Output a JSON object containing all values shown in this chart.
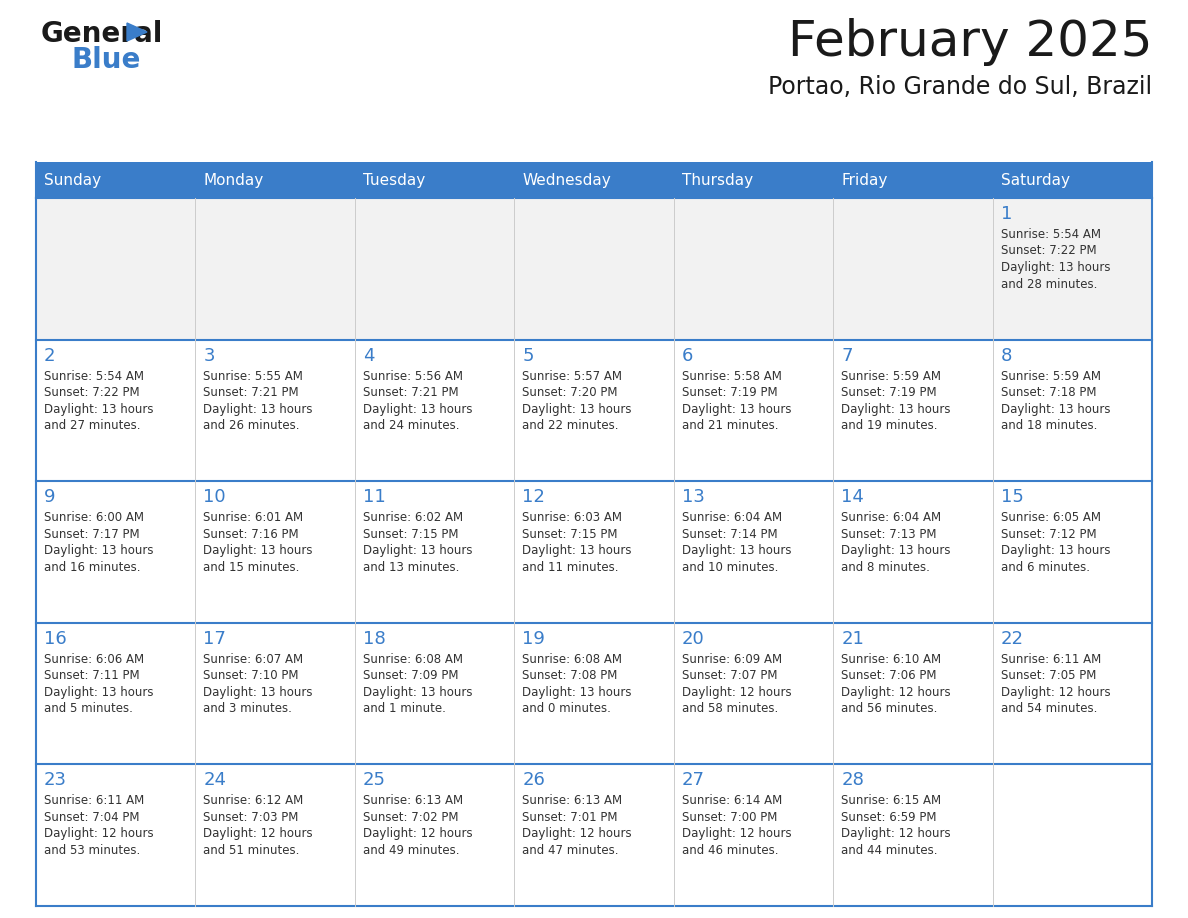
{
  "title": "February 2025",
  "subtitle": "Portao, Rio Grande do Sul, Brazil",
  "header_color": "#3A7DC9",
  "header_text_color": "#FFFFFF",
  "cell_bg_white": "#FFFFFF",
  "cell_bg_gray": "#F2F2F2",
  "row_separator_color": "#3A7DC9",
  "vertical_line_color": "#CCCCCC",
  "day_number_color": "#3A7DC9",
  "text_color": "#333333",
  "logo_text_color": "#1a1a1a",
  "logo_blue_color": "#3A7DC9",
  "title_color": "#1a1a1a",
  "days_of_week": [
    "Sunday",
    "Monday",
    "Tuesday",
    "Wednesday",
    "Thursday",
    "Friday",
    "Saturday"
  ],
  "weeks": [
    [
      {
        "day": "",
        "info": ""
      },
      {
        "day": "",
        "info": ""
      },
      {
        "day": "",
        "info": ""
      },
      {
        "day": "",
        "info": ""
      },
      {
        "day": "",
        "info": ""
      },
      {
        "day": "",
        "info": ""
      },
      {
        "day": "1",
        "info": "Sunrise: 5:54 AM\nSunset: 7:22 PM\nDaylight: 13 hours\nand 28 minutes."
      }
    ],
    [
      {
        "day": "2",
        "info": "Sunrise: 5:54 AM\nSunset: 7:22 PM\nDaylight: 13 hours\nand 27 minutes."
      },
      {
        "day": "3",
        "info": "Sunrise: 5:55 AM\nSunset: 7:21 PM\nDaylight: 13 hours\nand 26 minutes."
      },
      {
        "day": "4",
        "info": "Sunrise: 5:56 AM\nSunset: 7:21 PM\nDaylight: 13 hours\nand 24 minutes."
      },
      {
        "day": "5",
        "info": "Sunrise: 5:57 AM\nSunset: 7:20 PM\nDaylight: 13 hours\nand 22 minutes."
      },
      {
        "day": "6",
        "info": "Sunrise: 5:58 AM\nSunset: 7:19 PM\nDaylight: 13 hours\nand 21 minutes."
      },
      {
        "day": "7",
        "info": "Sunrise: 5:59 AM\nSunset: 7:19 PM\nDaylight: 13 hours\nand 19 minutes."
      },
      {
        "day": "8",
        "info": "Sunrise: 5:59 AM\nSunset: 7:18 PM\nDaylight: 13 hours\nand 18 minutes."
      }
    ],
    [
      {
        "day": "9",
        "info": "Sunrise: 6:00 AM\nSunset: 7:17 PM\nDaylight: 13 hours\nand 16 minutes."
      },
      {
        "day": "10",
        "info": "Sunrise: 6:01 AM\nSunset: 7:16 PM\nDaylight: 13 hours\nand 15 minutes."
      },
      {
        "day": "11",
        "info": "Sunrise: 6:02 AM\nSunset: 7:15 PM\nDaylight: 13 hours\nand 13 minutes."
      },
      {
        "day": "12",
        "info": "Sunrise: 6:03 AM\nSunset: 7:15 PM\nDaylight: 13 hours\nand 11 minutes."
      },
      {
        "day": "13",
        "info": "Sunrise: 6:04 AM\nSunset: 7:14 PM\nDaylight: 13 hours\nand 10 minutes."
      },
      {
        "day": "14",
        "info": "Sunrise: 6:04 AM\nSunset: 7:13 PM\nDaylight: 13 hours\nand 8 minutes."
      },
      {
        "day": "15",
        "info": "Sunrise: 6:05 AM\nSunset: 7:12 PM\nDaylight: 13 hours\nand 6 minutes."
      }
    ],
    [
      {
        "day": "16",
        "info": "Sunrise: 6:06 AM\nSunset: 7:11 PM\nDaylight: 13 hours\nand 5 minutes."
      },
      {
        "day": "17",
        "info": "Sunrise: 6:07 AM\nSunset: 7:10 PM\nDaylight: 13 hours\nand 3 minutes."
      },
      {
        "day": "18",
        "info": "Sunrise: 6:08 AM\nSunset: 7:09 PM\nDaylight: 13 hours\nand 1 minute."
      },
      {
        "day": "19",
        "info": "Sunrise: 6:08 AM\nSunset: 7:08 PM\nDaylight: 13 hours\nand 0 minutes."
      },
      {
        "day": "20",
        "info": "Sunrise: 6:09 AM\nSunset: 7:07 PM\nDaylight: 12 hours\nand 58 minutes."
      },
      {
        "day": "21",
        "info": "Sunrise: 6:10 AM\nSunset: 7:06 PM\nDaylight: 12 hours\nand 56 minutes."
      },
      {
        "day": "22",
        "info": "Sunrise: 6:11 AM\nSunset: 7:05 PM\nDaylight: 12 hours\nand 54 minutes."
      }
    ],
    [
      {
        "day": "23",
        "info": "Sunrise: 6:11 AM\nSunset: 7:04 PM\nDaylight: 12 hours\nand 53 minutes."
      },
      {
        "day": "24",
        "info": "Sunrise: 6:12 AM\nSunset: 7:03 PM\nDaylight: 12 hours\nand 51 minutes."
      },
      {
        "day": "25",
        "info": "Sunrise: 6:13 AM\nSunset: 7:02 PM\nDaylight: 12 hours\nand 49 minutes."
      },
      {
        "day": "26",
        "info": "Sunrise: 6:13 AM\nSunset: 7:01 PM\nDaylight: 12 hours\nand 47 minutes."
      },
      {
        "day": "27",
        "info": "Sunrise: 6:14 AM\nSunset: 7:00 PM\nDaylight: 12 hours\nand 46 minutes."
      },
      {
        "day": "28",
        "info": "Sunrise: 6:15 AM\nSunset: 6:59 PM\nDaylight: 12 hours\nand 44 minutes."
      },
      {
        "day": "",
        "info": ""
      }
    ]
  ]
}
